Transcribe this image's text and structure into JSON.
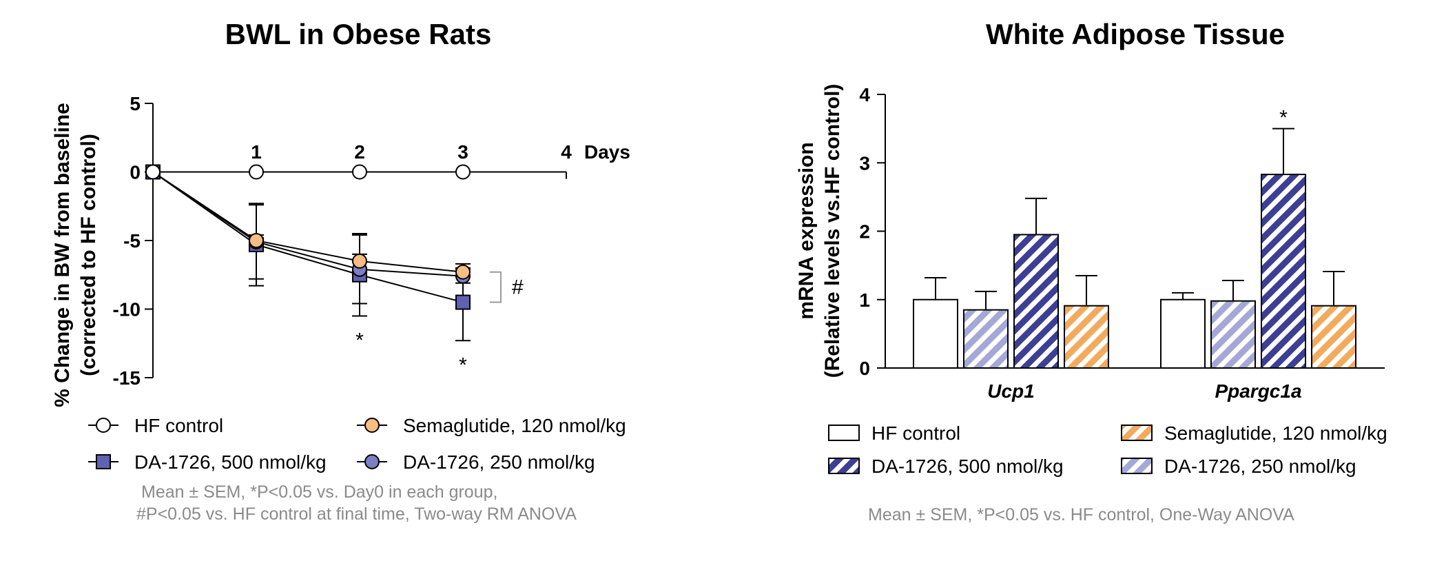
{
  "colors": {
    "hf": "#ffffff",
    "sema": "#f7bd83",
    "da500": "#5f62b0",
    "da250": "#7c7fc1",
    "hatch500": "#3d3f94",
    "hatch250": "#a5a8d6",
    "hatchSema": "#f2aa5c",
    "ink": "#000000"
  },
  "chart_data": [
    {
      "type": "line",
      "title": "BWL in Obese Rats",
      "ylabel_line1": "% Change in BW from baseline",
      "ylabel_line2": "(corrected to HF control)",
      "xlabel": "Days",
      "ylim": [
        -15,
        5
      ],
      "yticks": [
        "5",
        "0",
        "-5",
        "-10",
        "-15"
      ],
      "ytick_values": [
        5,
        0,
        -5,
        -10,
        -15
      ],
      "x": [
        0,
        1,
        2,
        3
      ],
      "xticks": [
        "1",
        "2",
        "3",
        "4"
      ],
      "xtick_values": [
        1,
        2,
        3,
        4
      ],
      "xlim": [
        0,
        4
      ],
      "series": [
        {
          "name": "HF control",
          "key": "hf",
          "marker": "circle",
          "values": [
            0,
            0,
            0,
            0
          ],
          "errors": [
            0,
            0,
            0,
            0
          ]
        },
        {
          "name": "Semaglutide, 120 nmol/kg",
          "key": "sema",
          "marker": "circle",
          "values": [
            0,
            -5.0,
            -6.5,
            -7.3
          ],
          "errors": [
            0,
            0.4,
            0.5,
            0.3
          ]
        },
        {
          "name": "DA-1726, 500 nmol/kg",
          "key": "da500",
          "marker": "square",
          "values": [
            0,
            -5.3,
            -7.5,
            -9.5
          ],
          "errors": [
            0,
            3.0,
            3.0,
            2.8
          ]
        },
        {
          "name": "DA-1726, 250 nmol/kg",
          "key": "da250",
          "marker": "circle",
          "values": [
            0,
            -5.1,
            -7.1,
            -7.6
          ],
          "errors": [
            0,
            2.7,
            2.5,
            0.5
          ]
        }
      ],
      "annotations": {
        "star": "*",
        "hash": "#"
      },
      "footnote_line1": "Mean ± SEM, *P<0.05 vs. Day0 in each group,",
      "footnote_line2": "#P<0.05 vs. HF control at final time,  Two-way RM ANOVA"
    },
    {
      "type": "bar",
      "title": "White Adipose Tissue",
      "ylabel_line1": "mRNA expression",
      "ylabel_line2": "(Relative levels vs.HF control)",
      "ylim": [
        0,
        4
      ],
      "yticks": [
        "0",
        "1",
        "2",
        "3",
        "4"
      ],
      "ytick_values": [
        0,
        1,
        2,
        3,
        4
      ],
      "categories": [
        "Ucp1",
        "Ppargc1a"
      ],
      "series": [
        {
          "name": "HF control",
          "key": "hf",
          "values": [
            1.0,
            1.0
          ],
          "errors": [
            0.32,
            0.1
          ]
        },
        {
          "name": "DA-1726, 250 nmol/kg",
          "key": "da250",
          "values": [
            0.85,
            0.98
          ],
          "errors": [
            0.27,
            0.3
          ]
        },
        {
          "name": "DA-1726, 500 nmol/kg",
          "key": "da500",
          "values": [
            1.95,
            2.83
          ],
          "errors": [
            0.53,
            0.67
          ]
        },
        {
          "name": "Semaglutide, 120 nmol/kg",
          "key": "sema",
          "values": [
            0.91,
            0.91
          ],
          "errors": [
            0.44,
            0.5
          ]
        }
      ],
      "annotations": {
        "star": "*"
      },
      "footnote": "Mean ± SEM, *P<0.05 vs. HF control,  One-Way ANOVA"
    }
  ]
}
